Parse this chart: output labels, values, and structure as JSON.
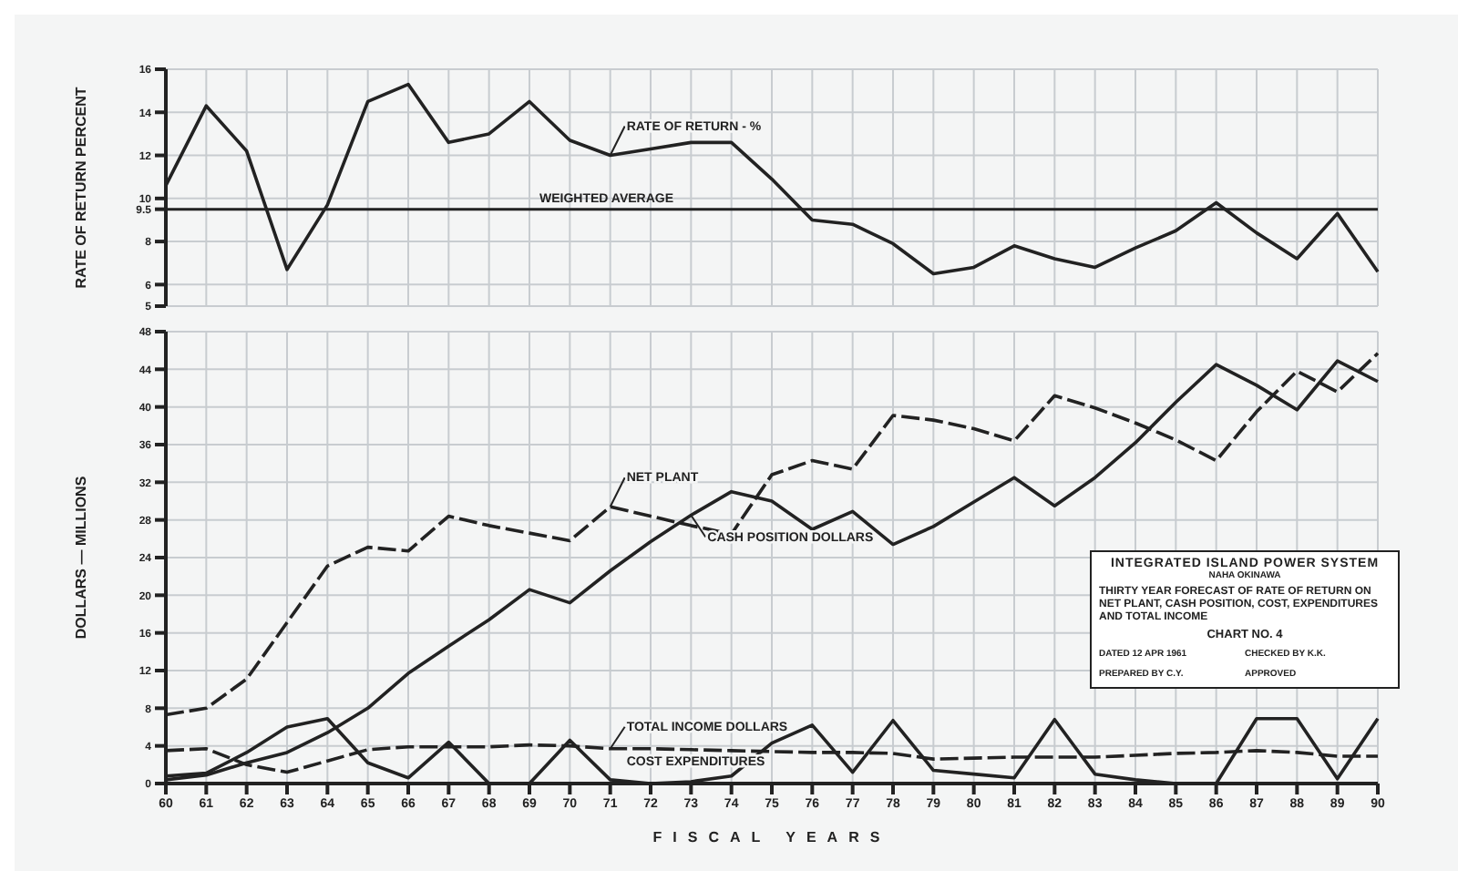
{
  "chart_data": [
    {
      "type": "line",
      "ylabel": "RATE OF RETURN PERCENT",
      "categories": [
        "60",
        "61",
        "62",
        "63",
        "64",
        "65",
        "66",
        "67",
        "68",
        "69",
        "70",
        "71",
        "72",
        "73",
        "74",
        "75",
        "76",
        "77",
        "78",
        "79",
        "80",
        "81",
        "82",
        "83",
        "84",
        "85",
        "86",
        "87",
        "88",
        "89",
        "90"
      ],
      "series": [
        {
          "name": "RATE OF RETURN - %",
          "color": "#222222",
          "values": [
            10.6,
            14.3,
            12.2,
            6.7,
            9.7,
            14.5,
            15.3,
            12.6,
            13.0,
            14.5,
            12.7,
            12.0,
            12.3,
            12.6,
            12.6,
            10.9,
            9.0,
            8.8,
            7.9,
            6.5,
            6.8,
            7.8,
            7.2,
            6.8,
            7.7,
            8.5,
            9.8,
            8.4,
            7.2,
            9.3,
            6.6
          ]
        }
      ],
      "ref_lines": [
        {
          "axis": "y",
          "value": 9.5,
          "label": "WEIGHTED AVERAGE",
          "color": "#222222"
        }
      ],
      "ylim": [
        5,
        16
      ],
      "yticks": [
        5,
        6,
        8,
        9.5,
        10,
        12,
        14,
        16
      ],
      "grid": true,
      "tick_labels": "y",
      "marker": "none",
      "legend": false
    },
    {
      "type": "line",
      "xlabel": "FISCAL YEARS",
      "ylabel": "DOLLARS — MILLIONS",
      "categories": [
        "60",
        "61",
        "62",
        "63",
        "64",
        "65",
        "66",
        "67",
        "68",
        "69",
        "70",
        "71",
        "72",
        "73",
        "74",
        "75",
        "76",
        "77",
        "78",
        "79",
        "80",
        "81",
        "82",
        "83",
        "84",
        "85",
        "86",
        "87",
        "88",
        "89",
        "90"
      ],
      "series": [
        {
          "name": "NET PLANT",
          "color": "#222222",
          "line_style": "dashed",
          "values": [
            7.3,
            8.0,
            11.1,
            17.1,
            23.1,
            25.1,
            24.7,
            28.4,
            27.4,
            26.6,
            25.8,
            29.4,
            28.4,
            27.4,
            26.5,
            32.8,
            34.3,
            33.4,
            39.1,
            38.6,
            37.7,
            36.4,
            41.2,
            39.9,
            38.3,
            36.5,
            34.3,
            39.5,
            43.8,
            41.6,
            45.7
          ]
        },
        {
          "name": "CASH POSITION DOLLARS",
          "color": "#222222",
          "values": [
            0.4,
            0.9,
            2.2,
            3.3,
            5.4,
            8.0,
            11.7,
            14.6,
            17.4,
            20.6,
            19.2,
            22.6,
            25.7,
            28.5,
            31.0,
            30.0,
            27.0,
            28.9,
            25.4,
            27.3,
            29.9,
            32.5,
            29.5,
            32.5,
            36.2,
            40.5,
            44.5,
            42.3,
            39.7,
            44.9,
            42.7
          ]
        },
        {
          "name": "TOTAL INCOME DOLLARS",
          "color": "#222222",
          "line_style": "dashed",
          "values": [
            3.5,
            3.7,
            2.0,
            1.2,
            2.4,
            3.6,
            3.9,
            3.9,
            3.9,
            4.1,
            4.0,
            3.7,
            3.7,
            3.6,
            3.5,
            3.4,
            3.3,
            3.3,
            3.2,
            2.6,
            2.7,
            2.8,
            2.8,
            2.8,
            3.0,
            3.2,
            3.3,
            3.5,
            3.3,
            2.9,
            2.9
          ]
        },
        {
          "name": "COST EXPENDITURES",
          "color": "#222222",
          "values": [
            0.8,
            1.1,
            3.3,
            6.0,
            6.9,
            2.2,
            0.6,
            4.4,
            0,
            0,
            4.6,
            0.4,
            0,
            0.2,
            0.8,
            4.3,
            6.2,
            1.2,
            6.7,
            1.4,
            1.0,
            0.6,
            6.8,
            1.0,
            0.4,
            0,
            0,
            6.9,
            6.9,
            0.5,
            6.9
          ]
        }
      ],
      "annotations": [
        "INTEGRATED ISLAND POWER SYSTEM",
        "NAHA OKINAWA",
        "THIRTY YEAR FORECAST OF RATE OF RETURN ON NET PLANT, CASH POSITION, COST, EXPENDITURES AND TOTAL INCOME",
        "CHART NO. 4",
        "DATED 12 APR 1961",
        "CHECKED BY K.K.",
        "PREPARED BY C.Y.",
        "APPROVED"
      ],
      "ylim": [
        0,
        48
      ],
      "yticks": [
        0,
        4,
        8,
        12,
        16,
        20,
        24,
        28,
        32,
        36,
        40,
        44,
        48
      ],
      "grid": true,
      "marker": "none",
      "legend": false
    }
  ]
}
